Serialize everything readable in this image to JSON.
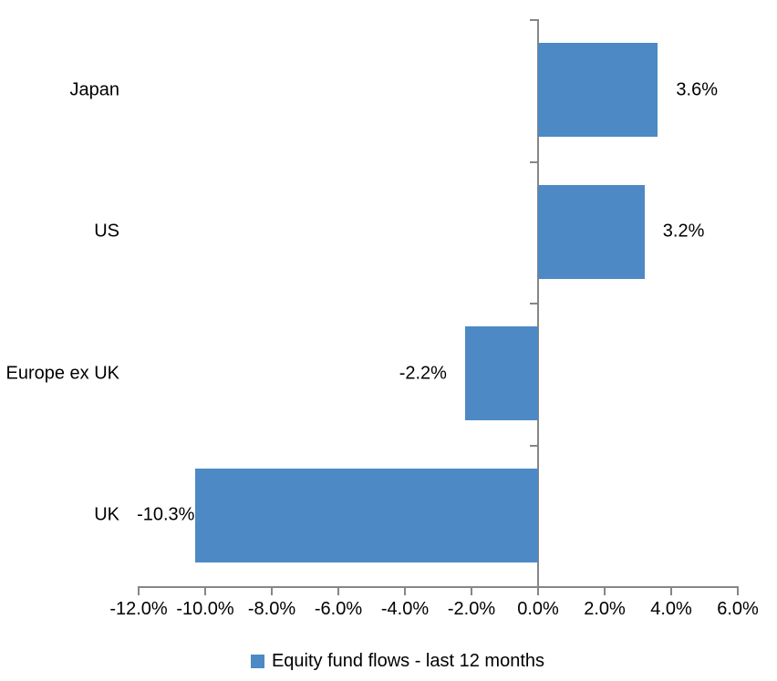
{
  "chart_data": {
    "type": "bar",
    "orientation": "horizontal",
    "title": "",
    "categories": [
      "Japan",
      "US",
      "Europe ex UK",
      "UK"
    ],
    "values": [
      3.6,
      3.2,
      -2.2,
      -10.3
    ],
    "data_labels": [
      "3.6%",
      "3.2%",
      "-2.2%",
      "-10.3%"
    ],
    "series_name": "Equity fund flows - last 12 months",
    "xlim": [
      -12,
      6
    ],
    "x_tick_step": 2,
    "x_tick_labels": [
      "-12.0%",
      "-10.0%",
      "-8.0%",
      "-6.0%",
      "-4.0%",
      "-2.0%",
      "0.0%",
      "2.0%",
      "4.0%",
      "6.0%"
    ],
    "grid": false,
    "legend_position": "bottom",
    "bar_color": "#4D89C4",
    "axis_color": "#868686",
    "text_color": "#000000"
  },
  "legend": {
    "label": "Equity fund flows - last 12 months"
  }
}
